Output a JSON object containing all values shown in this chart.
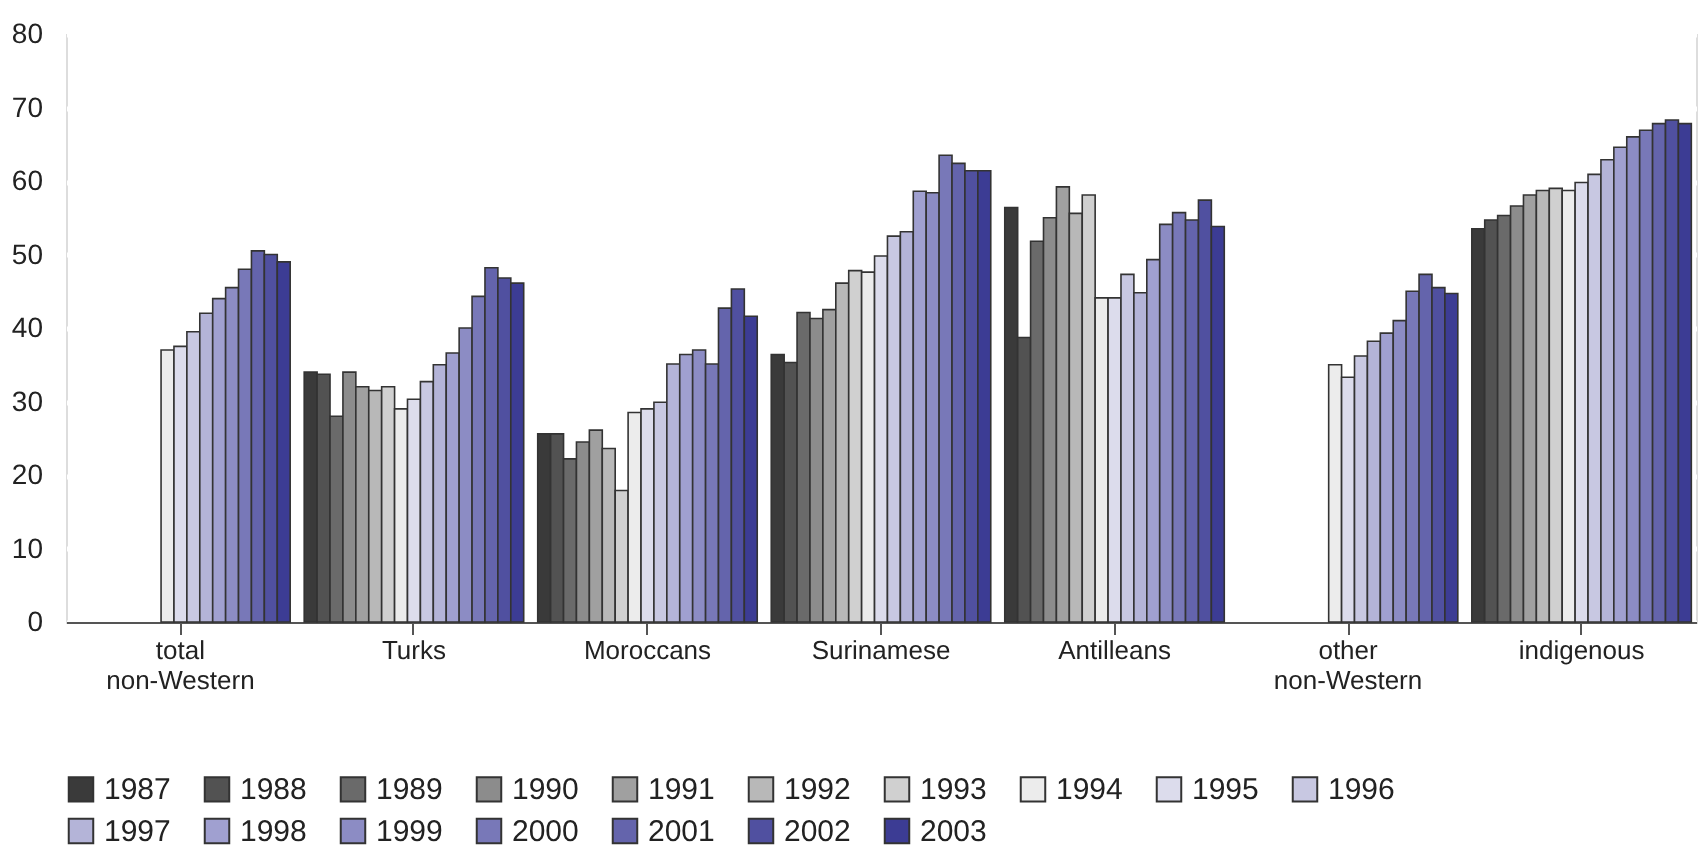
{
  "chart_data": {
    "type": "bar",
    "categories": [
      "total non-Western",
      "Turks",
      "Moroccans",
      "Surinamese",
      "Antilleans",
      "other non-Western",
      "indigenous"
    ],
    "series": [
      {
        "name": "1987",
        "color": "#3a3a3a",
        "values": [
          null,
          34.0,
          25.6,
          36.4,
          56.4,
          null,
          53.5
        ]
      },
      {
        "name": "1988",
        "color": "#525252",
        "values": [
          null,
          33.7,
          25.6,
          35.3,
          38.7,
          null,
          54.7
        ]
      },
      {
        "name": "1989",
        "color": "#6a6a6a",
        "values": [
          null,
          28.0,
          22.2,
          42.1,
          51.8,
          null,
          55.3
        ]
      },
      {
        "name": "1990",
        "color": "#8c8c8c",
        "values": [
          null,
          34.0,
          24.5,
          41.3,
          55.0,
          null,
          56.6
        ]
      },
      {
        "name": "1991",
        "color": "#a0a0a0",
        "values": [
          null,
          32.0,
          26.1,
          42.5,
          59.2,
          null,
          58.1
        ]
      },
      {
        "name": "1992",
        "color": "#b8b8b8",
        "values": [
          null,
          31.5,
          23.6,
          46.1,
          55.6,
          null,
          58.7
        ]
      },
      {
        "name": "1993",
        "color": "#d0d0d0",
        "values": [
          null,
          32.0,
          17.9,
          47.8,
          58.1,
          null,
          59.0
        ]
      },
      {
        "name": "1994",
        "color": "#ececec",
        "values": [
          37.0,
          29.0,
          28.5,
          47.6,
          44.1,
          35.0,
          58.7
        ]
      },
      {
        "name": "1995",
        "color": "#dcdcec",
        "values": [
          37.5,
          30.3,
          29.0,
          49.8,
          44.1,
          33.3,
          59.8
        ]
      },
      {
        "name": "1996",
        "color": "#c8c8e2",
        "values": [
          39.5,
          32.7,
          29.9,
          52.5,
          47.3,
          36.2,
          60.9
        ]
      },
      {
        "name": "1997",
        "color": "#b4b4d8",
        "values": [
          42.0,
          35.0,
          35.1,
          53.1,
          44.8,
          38.2,
          62.9
        ]
      },
      {
        "name": "1998",
        "color": "#a0a0d0",
        "values": [
          44.0,
          36.6,
          36.4,
          58.6,
          49.3,
          39.3,
          64.6
        ]
      },
      {
        "name": "1999",
        "color": "#8c8cc4",
        "values": [
          45.5,
          40.0,
          37.0,
          58.4,
          54.1,
          41.0,
          66.0
        ]
      },
      {
        "name": "2000",
        "color": "#7878b8",
        "values": [
          48.0,
          44.3,
          35.1,
          63.5,
          55.7,
          45.0,
          66.9
        ]
      },
      {
        "name": "2001",
        "color": "#6464ac",
        "values": [
          50.5,
          48.2,
          42.7,
          62.4,
          54.7,
          47.3,
          67.8
        ]
      },
      {
        "name": "2002",
        "color": "#5050a0",
        "values": [
          50.0,
          46.8,
          45.3,
          61.4,
          57.4,
          45.5,
          68.3
        ]
      },
      {
        "name": "2003",
        "color": "#3c3c94",
        "values": [
          49.0,
          46.1,
          41.6,
          61.4,
          53.8,
          44.7,
          67.8
        ]
      }
    ],
    "ylim": [
      0,
      80
    ],
    "yticks": [
      0,
      10,
      20,
      30,
      40,
      50,
      60,
      70,
      80
    ],
    "grid": "y",
    "legend": "bottom"
  }
}
